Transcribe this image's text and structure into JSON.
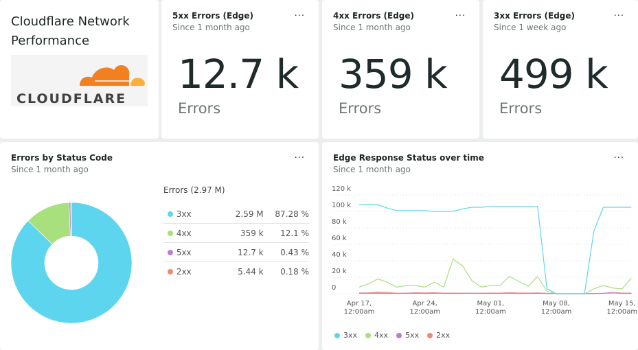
{
  "title": "Cloudflare Network Performance",
  "logo_text": "CLOUDFLARE",
  "menu_label": "...",
  "kpis": [
    {
      "title": "5xx Errors (Edge)",
      "subtitle": "Since 1 month ago",
      "value": "12.7 k",
      "unit": "Errors"
    },
    {
      "title": "4xx Errors (Edge)",
      "subtitle": "Since 1 month ago",
      "value": "359 k",
      "unit": "Errors"
    },
    {
      "title": "3xx Errors (Edge)",
      "subtitle": "Since 1 week ago",
      "value": "499 k",
      "unit": "Errors"
    }
  ],
  "colors": {
    "3xx": "#5dd5ef",
    "4xx": "#a8e07e",
    "5xx": "#b77fd8",
    "2xx": "#f2896c"
  },
  "chart_data": [
    {
      "type": "pie",
      "title": "Errors by Status Code",
      "subtitle": "Since 1 month ago",
      "legend_header": "Errors (2.97 M)",
      "slices": [
        {
          "name": "3xx",
          "value": "2.59 M",
          "percent": "87.28 %",
          "share": 87.28
        },
        {
          "name": "4xx",
          "value": "359 k",
          "percent": "12.1 %",
          "share": 12.1
        },
        {
          "name": "5xx",
          "value": "12.7 k",
          "percent": "0.43 %",
          "share": 0.43
        },
        {
          "name": "2xx",
          "value": "5.44 k",
          "percent": "0.18 %",
          "share": 0.18
        }
      ]
    },
    {
      "type": "line",
      "title": "Edge Response Status over time",
      "subtitle": "Since 1 month ago",
      "ylim": [
        0,
        120000
      ],
      "grid": true,
      "legend": "bottom-left",
      "yticks": [
        "0",
        "20 k",
        "40 k",
        "60 k",
        "80 k",
        "100 k",
        "120 k"
      ],
      "xticks": [
        {
          "day": "Apr 17",
          "l1": "Apr 17,",
          "l2": "12:00am"
        },
        {
          "day": "Apr 24",
          "l1": "Apr 24,",
          "l2": "12:00am"
        },
        {
          "day": "May 01",
          "l1": "May 01,",
          "l2": "12:00am"
        },
        {
          "day": "May 08",
          "l1": "May 08,",
          "l2": "12:00am"
        },
        {
          "day": "May 15",
          "l1": "May 15,",
          "l2": "12:00am"
        }
      ],
      "x": [
        "Apr 17",
        "Apr 18",
        "Apr 19",
        "Apr 20",
        "Apr 21",
        "Apr 22",
        "Apr 23",
        "Apr 24",
        "Apr 25",
        "Apr 26",
        "Apr 27",
        "Apr 28",
        "Apr 29",
        "Apr 30",
        "May 01",
        "May 02",
        "May 03",
        "May 04",
        "May 05",
        "May 06",
        "May 07",
        "May 08",
        "May 09",
        "May 10",
        "May 11",
        "May 12",
        "May 13",
        "May 14",
        "May 15",
        "May 16"
      ],
      "series": [
        {
          "name": "3xx",
          "values": [
            108000,
            108000,
            108000,
            104000,
            101000,
            101000,
            101000,
            101000,
            100000,
            100000,
            100000,
            103000,
            105000,
            105000,
            106000,
            106000,
            106000,
            106000,
            106000,
            106000,
            6000,
            0,
            0,
            0,
            0,
            76000,
            105000,
            105000,
            105000,
            105000
          ]
        },
        {
          "name": "4xx",
          "values": [
            8000,
            12000,
            18000,
            14000,
            8000,
            10000,
            10000,
            8000,
            14000,
            8000,
            42000,
            34000,
            16000,
            8000,
            10000,
            10000,
            21000,
            15000,
            9000,
            21000,
            3000,
            0,
            0,
            0,
            0,
            6000,
            10000,
            7000,
            6000,
            19000
          ]
        },
        {
          "name": "5xx",
          "values": [
            500,
            500,
            600,
            400,
            400,
            500,
            500,
            400,
            500,
            400,
            400,
            400,
            500,
            400,
            400,
            400,
            500,
            400,
            400,
            500,
            300,
            0,
            0,
            0,
            0,
            300,
            400,
            1000,
            400,
            400
          ]
        },
        {
          "name": "2xx",
          "values": [
            1000,
            1000,
            2000,
            1500,
            500,
            800,
            1200,
            1000,
            1200,
            600,
            800,
            600,
            600,
            600,
            700,
            800,
            1200,
            900,
            800,
            1000,
            400,
            0,
            0,
            0,
            0,
            300,
            500,
            1500,
            800,
            700
          ]
        }
      ]
    }
  ]
}
